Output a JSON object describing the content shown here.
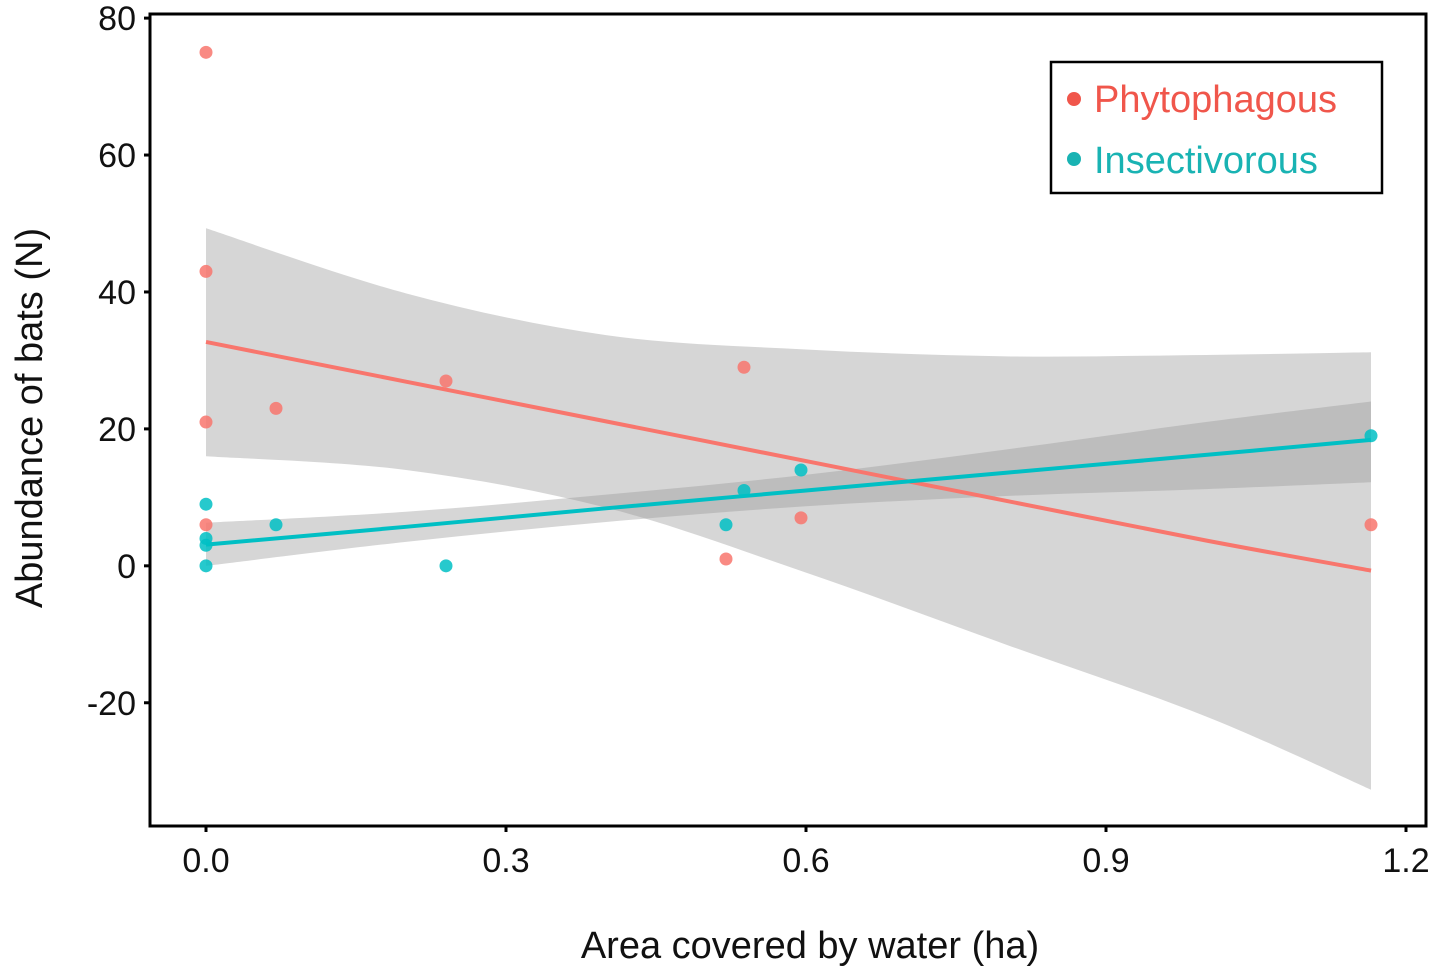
{
  "chart_data": {
    "type": "scatter",
    "title": "",
    "xlabel": "Area covered by water (ha)",
    "ylabel": "Abundance of bats (N)",
    "xlim": [
      -0.056,
      1.22
    ],
    "ylim": [
      -38,
      80.6
    ],
    "xticks": [
      0.0,
      0.3,
      0.6,
      0.9,
      1.2
    ],
    "xtick_labels": [
      "0.0",
      "0.3",
      "0.6",
      "0.9",
      "1.2"
    ],
    "yticks": [
      80,
      60,
      40,
      20,
      0,
      -20
    ],
    "ytick_labels": [
      "80",
      "60",
      "40",
      "20",
      "0",
      "-20"
    ],
    "grid": false,
    "legend": {
      "placement": "top-right",
      "entries": [
        {
          "label": "Phytophagous",
          "color": "#F0564B"
        },
        {
          "label": "Insectivorous",
          "color": "#19B3B3"
        }
      ]
    },
    "series": [
      {
        "name": "Phytophagous",
        "color": "#F8766D",
        "points": [
          {
            "x": 0.0,
            "y": 75
          },
          {
            "x": 0.0,
            "y": 43
          },
          {
            "x": 0.0,
            "y": 21
          },
          {
            "x": 0.0,
            "y": 6
          },
          {
            "x": 0.07,
            "y": 23
          },
          {
            "x": 0.24,
            "y": 27
          },
          {
            "x": 0.52,
            "y": 1
          },
          {
            "x": 0.538,
            "y": 29
          },
          {
            "x": 0.595,
            "y": 7
          },
          {
            "x": 1.165,
            "y": 6
          }
        ],
        "fit": {
          "method": "linear",
          "x": [
            0.0,
            0.2,
            0.4,
            0.6,
            0.8,
            1.0,
            1.165
          ],
          "y": [
            32.7,
            26.9,
            21.1,
            15.3,
            9.5,
            3.7,
            -0.7
          ],
          "ci_lower": [
            16.0,
            14.0,
            8.5,
            -1.0,
            -11.5,
            -22.0,
            -32.7
          ],
          "ci_upper": [
            49.3,
            39.8,
            33.7,
            31.6,
            30.6,
            30.8,
            31.2
          ]
        }
      },
      {
        "name": "Insectivorous",
        "color": "#00BFC4",
        "points": [
          {
            "x": 0.0,
            "y": 9
          },
          {
            "x": 0.0,
            "y": 4
          },
          {
            "x": 0.0,
            "y": 3
          },
          {
            "x": 0.0,
            "y": 0
          },
          {
            "x": 0.07,
            "y": 6
          },
          {
            "x": 0.24,
            "y": 0
          },
          {
            "x": 0.52,
            "y": 6
          },
          {
            "x": 0.538,
            "y": 11
          },
          {
            "x": 0.595,
            "y": 14
          },
          {
            "x": 1.165,
            "y": 19
          }
        ],
        "fit": {
          "method": "linear",
          "x": [
            0.0,
            0.2,
            0.4,
            0.6,
            0.8,
            1.0,
            1.165
          ],
          "y": [
            3.1,
            5.7,
            8.4,
            11.0,
            13.6,
            16.2,
            18.4
          ],
          "ci_lower": [
            0.0,
            3.5,
            6.4,
            8.7,
            10.2,
            11.2,
            12.2
          ],
          "ci_upper": [
            6.3,
            7.9,
            10.4,
            13.3,
            17.0,
            21.0,
            24.0
          ]
        }
      }
    ]
  }
}
